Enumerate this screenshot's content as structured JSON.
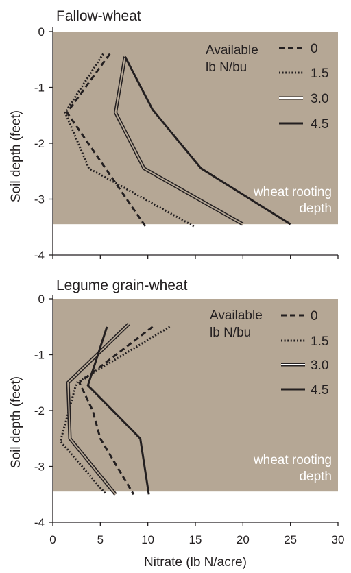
{
  "legend_title": [
    "Available",
    "lb N/bu"
  ],
  "rooting_label": [
    "wheat rooting",
    "depth"
  ],
  "colors": {
    "rooting_zone": "#b5a795",
    "line": "#231f20",
    "background": "#ffffff"
  },
  "chart_data": [
    {
      "type": "line",
      "title": "Fallow-wheat",
      "xlabel": "",
      "ylabel": "Soil depth (feet)",
      "xlim": [
        0,
        30
      ],
      "ylim": [
        -4,
        0
      ],
      "x_ticks": [
        "0",
        "5",
        "10",
        "15",
        "20",
        "25",
        "30"
      ],
      "x_ticks_visible": false,
      "y_ticks": [
        "0",
        "-1",
        "-2",
        "-3",
        "-4"
      ],
      "rooting_depth": -3.45,
      "legend": [
        "0",
        "1.5",
        "3.0",
        "4.5"
      ],
      "legend_placement": "top-right",
      "series": [
        {
          "name": "0",
          "style": "dashed",
          "points": [
            [
              6.0,
              -0.4
            ],
            [
              1.5,
              -1.45
            ],
            [
              9.8,
              -3.5
            ]
          ]
        },
        {
          "name": "1.5",
          "style": "dotted",
          "points": [
            [
              5.3,
              -0.4
            ],
            [
              1.3,
              -1.45
            ],
            [
              3.8,
              -2.45
            ],
            [
              6.5,
              -2.7
            ],
            [
              15.0,
              -3.5
            ]
          ]
        },
        {
          "name": "3.0",
          "style": "double",
          "points": [
            [
              7.6,
              -0.45
            ],
            [
              6.6,
              -1.45
            ],
            [
              9.6,
              -2.45
            ],
            [
              20.0,
              -3.45
            ]
          ]
        },
        {
          "name": "4.5",
          "style": "solid",
          "points": [
            [
              7.6,
              -0.45
            ],
            [
              10.5,
              -1.4
            ],
            [
              15.6,
              -2.45
            ],
            [
              25.0,
              -3.45
            ]
          ]
        }
      ]
    },
    {
      "type": "line",
      "title": "Legume grain-wheat",
      "xlabel": "Nitrate (lb N/acre)",
      "ylabel": "Soil depth (feet)",
      "xlim": [
        0,
        30
      ],
      "ylim": [
        -4,
        0
      ],
      "x_ticks": [
        "0",
        "5",
        "10",
        "15",
        "20",
        "25",
        "30"
      ],
      "x_ticks_visible": true,
      "y_ticks": [
        "0",
        "-1",
        "-2",
        "-3",
        "-4"
      ],
      "rooting_depth": -3.45,
      "legend": [
        "0",
        "1.5",
        "3.0",
        "4.5"
      ],
      "legend_placement": "top-right",
      "series": [
        {
          "name": "0",
          "style": "dashed",
          "points": [
            [
              10.5,
              -0.5
            ],
            [
              2.8,
              -1.5
            ],
            [
              4.2,
              -2.0
            ],
            [
              5.0,
              -2.5
            ],
            [
              8.5,
              -3.5
            ]
          ]
        },
        {
          "name": "1.5",
          "style": "dotted",
          "points": [
            [
              12.3,
              -0.5
            ],
            [
              2.5,
              -1.5
            ],
            [
              0.8,
              -2.55
            ],
            [
              5.6,
              -3.5
            ]
          ]
        },
        {
          "name": "3.0",
          "style": "double",
          "points": [
            [
              8.0,
              -0.45
            ],
            [
              1.6,
              -1.5
            ],
            [
              1.8,
              -2.5
            ],
            [
              6.6,
              -3.5
            ]
          ]
        },
        {
          "name": "4.5",
          "style": "solid",
          "points": [
            [
              5.7,
              -0.5
            ],
            [
              3.7,
              -1.55
            ],
            [
              9.2,
              -2.5
            ],
            [
              10.1,
              -3.5
            ]
          ]
        }
      ]
    }
  ]
}
